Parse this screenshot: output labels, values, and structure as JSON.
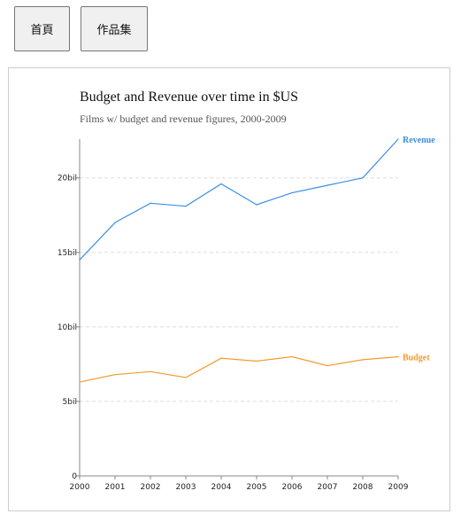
{
  "nav": {
    "home_label": "首頁",
    "portfolio_label": "作品集"
  },
  "colors": {
    "revenue": "#3a8ee6",
    "budget": "#f59a2f",
    "grid": "#dddddd",
    "axis": "#888888"
  },
  "chart_data": {
    "type": "line",
    "title": "Budget and Revenue over time in $US",
    "subtitle": "Films w/ budget and revenue figures, 2000-2009",
    "xlabel": "",
    "ylabel": "",
    "x": [
      "2000",
      "2001",
      "2002",
      "2003",
      "2004",
      "2005",
      "2006",
      "2007",
      "2008",
      "2009"
    ],
    "ylim": [
      0,
      22.6
    ],
    "y_ticks": [
      {
        "value": 0,
        "label": "0"
      },
      {
        "value": 5,
        "label": "5bil"
      },
      {
        "value": 10,
        "label": "10bil"
      },
      {
        "value": 15,
        "label": "15bil"
      },
      {
        "value": 20,
        "label": "20bil"
      }
    ],
    "grid": "horizontal dashed",
    "series": [
      {
        "name": "Revenue",
        "values": [
          14.5,
          17.0,
          18.3,
          18.1,
          19.6,
          18.2,
          19.0,
          19.5,
          20.0,
          22.6
        ]
      },
      {
        "name": "Budget",
        "values": [
          6.3,
          6.8,
          7.0,
          6.6,
          7.9,
          7.7,
          8.0,
          7.4,
          7.8,
          8.0
        ]
      }
    ]
  }
}
